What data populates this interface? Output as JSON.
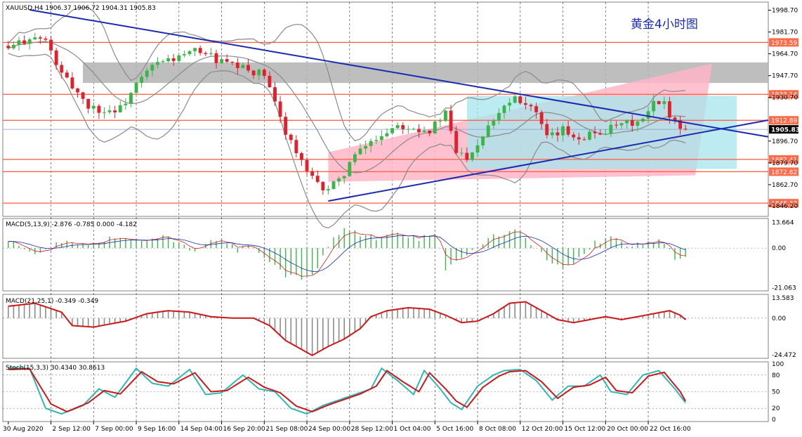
{
  "chart_data": [
    {
      "type": "candlestick",
      "header": "XAUUSD,H4  1906.37 1906.72 1904.31 1905.83",
      "title": "黄金4小时图",
      "ylim": [
        1838,
        2005
      ],
      "y_ticks": [
        "1998.70",
        "1981.70",
        "1964.70",
        "1947.70",
        "1930.70",
        "1896.70",
        "1879.70",
        "1862.70",
        "1846.20"
      ],
      "x_ticks": [
        "30 Aug 2020",
        "2 Sep 12:00",
        "7 Sep 00:00",
        "9 Sep 16:00",
        "14 Sep 04:00",
        "16 Sep 20:00",
        "21 Sep 08:00",
        "24 Sep 00:00",
        "28 Sep 12:00",
        "1 Oct 04:00",
        "5 Oct 16:00",
        "8 Oct 08:00",
        "12 Oct 20:00",
        "15 Oct 12:00",
        "20 Oct 00:00",
        "22 Oct 16:00"
      ],
      "current_price": "1905.83",
      "levels": [
        "1973.59",
        "1933.14",
        "1912.89",
        "1882.41",
        "1872.82",
        "1848.32"
      ],
      "close_path": [
        [
          0,
          1968
        ],
        [
          4,
          1978
        ],
        [
          7,
          1975
        ],
        [
          10,
          1948
        ],
        [
          13,
          1935
        ],
        [
          15,
          1924
        ],
        [
          18,
          1920
        ],
        [
          21,
          1922
        ],
        [
          24,
          1940
        ],
        [
          27,
          1955
        ],
        [
          30,
          1960
        ],
        [
          33,
          1963
        ],
        [
          36,
          1968
        ],
        [
          39,
          1960
        ],
        [
          42,
          1955
        ],
        [
          45,
          1952
        ],
        [
          48,
          1948
        ],
        [
          50,
          1925
        ],
        [
          52,
          1905
        ],
        [
          54,
          1888
        ],
        [
          56,
          1872
        ],
        [
          58,
          1862
        ],
        [
          60,
          1860
        ],
        [
          62,
          1865
        ],
        [
          64,
          1880
        ],
        [
          67,
          1893
        ],
        [
          70,
          1902
        ],
        [
          73,
          1910
        ],
        [
          76,
          1908
        ],
        [
          79,
          1905
        ],
        [
          82,
          1918
        ],
        [
          84,
          1888
        ],
        [
          86,
          1885
        ],
        [
          88,
          1895
        ],
        [
          90,
          1910
        ],
        [
          93,
          1925
        ],
        [
          95,
          1932
        ],
        [
          98,
          1924
        ],
        [
          99,
          1918
        ],
        [
          101,
          1898
        ],
        [
          104,
          1905
        ],
        [
          107,
          1900
        ],
        [
          110,
          1903
        ],
        [
          113,
          1906
        ],
        [
          116,
          1910
        ],
        [
          119,
          1912
        ],
        [
          121,
          1925
        ],
        [
          123,
          1925
        ],
        [
          125,
          1912
        ],
        [
          127,
          1905
        ]
      ],
      "macd1": {
        "label": "MACD(5,13,9) -2.876 -0.785 0.000 -4.182",
        "ylim": [
          -22,
          15
        ],
        "y_ticks": [
          "13.664",
          "0.00",
          "-21.063"
        ],
        "hist_path": [
          [
            0,
            5
          ],
          [
            5,
            -4
          ],
          [
            10,
            4
          ],
          [
            15,
            2
          ],
          [
            20,
            6
          ],
          [
            25,
            3
          ],
          [
            30,
            6
          ],
          [
            35,
            -2
          ],
          [
            38,
            3
          ],
          [
            40,
            5
          ],
          [
            43,
            -1
          ],
          [
            46,
            1
          ],
          [
            49,
            -8
          ],
          [
            52,
            -15
          ],
          [
            55,
            -16
          ],
          [
            58,
            -12
          ],
          [
            60,
            2
          ],
          [
            63,
            10
          ],
          [
            66,
            7
          ],
          [
            69,
            5
          ],
          [
            73,
            8
          ],
          [
            77,
            5
          ],
          [
            80,
            9
          ],
          [
            82,
            -12
          ],
          [
            85,
            -6
          ],
          [
            90,
            5
          ],
          [
            95,
            11
          ],
          [
            100,
            -3
          ],
          [
            104,
            -12
          ],
          [
            107,
            -6
          ],
          [
            110,
            3
          ],
          [
            113,
            5
          ],
          [
            116,
            2
          ],
          [
            119,
            3
          ],
          [
            122,
            5
          ],
          [
            125,
            -5
          ],
          [
            127,
            -4
          ]
        ]
      },
      "macd2": {
        "label": "MACD(21,25,1) -0.349 -0.349",
        "ylim": [
          -26,
          15
        ],
        "y_ticks": [
          "13.583",
          "0.00",
          "-24.472"
        ],
        "hist_path": [
          [
            0,
            8
          ],
          [
            5,
            10
          ],
          [
            10,
            4
          ],
          [
            12,
            -5
          ],
          [
            16,
            -6
          ],
          [
            22,
            -2
          ],
          [
            26,
            3
          ],
          [
            30,
            5
          ],
          [
            34,
            4
          ],
          [
            38,
            1
          ],
          [
            42,
            0
          ],
          [
            46,
            0
          ],
          [
            49,
            -5
          ],
          [
            52,
            -15
          ],
          [
            55,
            -21
          ],
          [
            57,
            -25
          ],
          [
            60,
            -19
          ],
          [
            63,
            -14
          ],
          [
            66,
            -7
          ],
          [
            68,
            1
          ],
          [
            71,
            5
          ],
          [
            75,
            7
          ],
          [
            79,
            6
          ],
          [
            82,
            2
          ],
          [
            85,
            -3
          ],
          [
            88,
            -2
          ],
          [
            91,
            3
          ],
          [
            94,
            10
          ],
          [
            97,
            11
          ],
          [
            100,
            5
          ],
          [
            103,
            -1
          ],
          [
            106,
            -3
          ],
          [
            109,
            -1
          ],
          [
            112,
            1
          ],
          [
            115,
            -1
          ],
          [
            118,
            1
          ],
          [
            121,
            3
          ],
          [
            124,
            5
          ],
          [
            126,
            2
          ],
          [
            127,
            -1
          ]
        ]
      },
      "stoch": {
        "label": "Stoch(15,3,3) 30.4340 30.8613",
        "ylim": [
          0,
          100
        ],
        "y_ticks": [
          "100",
          "80",
          "50",
          "20",
          "0"
        ],
        "k_path": [
          [
            0,
            93
          ],
          [
            4,
            92
          ],
          [
            7,
            20
          ],
          [
            10,
            10
          ],
          [
            14,
            25
          ],
          [
            17,
            55
          ],
          [
            20,
            40
          ],
          [
            24,
            92
          ],
          [
            27,
            65
          ],
          [
            30,
            60
          ],
          [
            34,
            90
          ],
          [
            37,
            45
          ],
          [
            40,
            48
          ],
          [
            44,
            80
          ],
          [
            47,
            55
          ],
          [
            50,
            50
          ],
          [
            53,
            20
          ],
          [
            56,
            10
          ],
          [
            59,
            25
          ],
          [
            62,
            35
          ],
          [
            65,
            45
          ],
          [
            68,
            55
          ],
          [
            70,
            92
          ],
          [
            73,
            70
          ],
          [
            76,
            45
          ],
          [
            78,
            88
          ],
          [
            81,
            55
          ],
          [
            83,
            30
          ],
          [
            85,
            18
          ],
          [
            88,
            60
          ],
          [
            91,
            80
          ],
          [
            93,
            88
          ],
          [
            96,
            90
          ],
          [
            99,
            70
          ],
          [
            102,
            35
          ],
          [
            105,
            60
          ],
          [
            108,
            60
          ],
          [
            111,
            80
          ],
          [
            113,
            50
          ],
          [
            116,
            45
          ],
          [
            119,
            80
          ],
          [
            122,
            88
          ],
          [
            125,
            55
          ],
          [
            127,
            30
          ]
        ],
        "d_path": [
          [
            0,
            90
          ],
          [
            4,
            91
          ],
          [
            8,
            28
          ],
          [
            11,
            14
          ],
          [
            15,
            30
          ],
          [
            18,
            52
          ],
          [
            21,
            46
          ],
          [
            25,
            86
          ],
          [
            28,
            68
          ],
          [
            31,
            64
          ],
          [
            35,
            84
          ],
          [
            38,
            50
          ],
          [
            41,
            52
          ],
          [
            45,
            76
          ],
          [
            48,
            58
          ],
          [
            51,
            48
          ],
          [
            54,
            24
          ],
          [
            57,
            14
          ],
          [
            60,
            26
          ],
          [
            63,
            36
          ],
          [
            66,
            46
          ],
          [
            69,
            60
          ],
          [
            71,
            88
          ],
          [
            74,
            68
          ],
          [
            77,
            50
          ],
          [
            79,
            84
          ],
          [
            82,
            55
          ],
          [
            84,
            33
          ],
          [
            86,
            22
          ],
          [
            89,
            58
          ],
          [
            92,
            78
          ],
          [
            94,
            86
          ],
          [
            97,
            88
          ],
          [
            100,
            68
          ],
          [
            103,
            38
          ],
          [
            106,
            58
          ],
          [
            109,
            62
          ],
          [
            112,
            76
          ],
          [
            114,
            52
          ],
          [
            117,
            48
          ],
          [
            120,
            78
          ],
          [
            123,
            85
          ],
          [
            126,
            50
          ],
          [
            127,
            33
          ]
        ]
      }
    }
  ]
}
